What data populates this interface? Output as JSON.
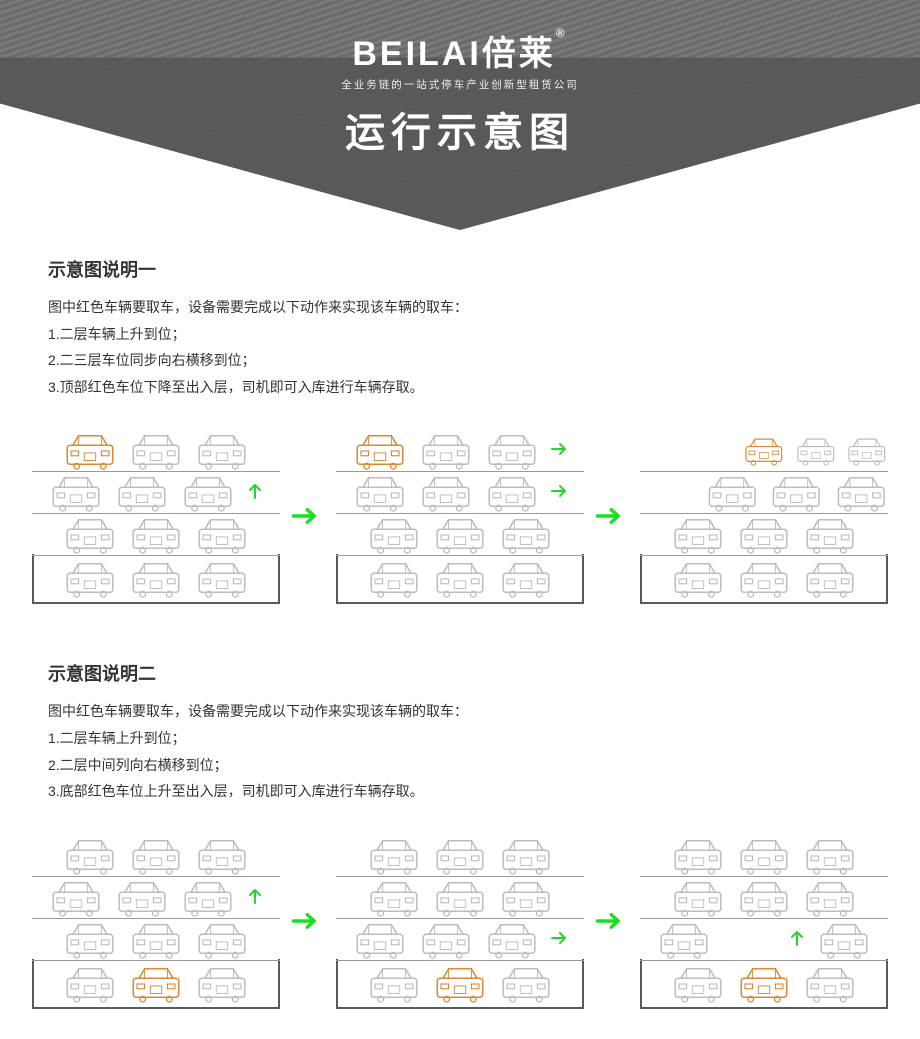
{
  "brand": "BEILAI倍莱",
  "reg": "®",
  "tagline": "全业务链的一站式停车产业创新型租赁公司",
  "title": "运行示意图",
  "colors": {
    "car_grey": "#bdbdbd",
    "car_highlight": "#d68a3a",
    "arrow_green": "#19e01e",
    "pit_border": "#5a5a5a",
    "shelf": "#9a9a9a",
    "banner_dark": "#555555",
    "banner_stripe_a": "#6a6a6a",
    "banner_stripe_b": "#7a7a7a",
    "text": "#333333",
    "bg": "#ffffff"
  },
  "section1": {
    "heading": "示意图说明一",
    "intro": "图中红色车辆要取车，设备需要完成以下动作来实现该车辆的取车：",
    "step1": "1.二层车辆上升到位；",
    "step2": "2.二三层车位同步向右横移到位；",
    "step3": "3.顶部红色车位下降至出入层，司机即可入库进行车辆存取。",
    "stages": [
      {
        "levels": [
          {
            "cars": [
              "hi",
              "g",
              "g"
            ],
            "shelf": true
          },
          {
            "cars": [
              "g",
              "g",
              "g"
            ],
            "shelf": true,
            "move": {
              "type": "up",
              "after": 2
            }
          },
          {
            "cars": [
              "g",
              "g",
              "g"
            ],
            "shelf": true
          },
          {
            "cars": [
              "g",
              "g",
              "g"
            ],
            "pit": true
          }
        ]
      },
      {
        "levels": [
          {
            "cars": [
              "hi",
              "g",
              "g"
            ],
            "shelf": true,
            "move": {
              "type": "right",
              "after": 2
            }
          },
          {
            "cars": [
              "g",
              "g",
              "g"
            ],
            "shelf": true,
            "move": {
              "type": "right",
              "after": 2
            }
          },
          {
            "cars": [
              "g",
              "g",
              "g"
            ],
            "shelf": true
          },
          {
            "cars": [
              "g",
              "g",
              "g"
            ],
            "pit": true
          }
        ]
      },
      {
        "levels": [
          {
            "cars": [
              "",
              "",
              "hi",
              "g",
              "g"
            ],
            "shelf": true,
            "compact": true
          },
          {
            "cars": [
              "",
              "g",
              "g",
              "g"
            ],
            "shelf": true,
            "compact": true
          },
          {
            "cars": [
              "g",
              "g",
              "g"
            ],
            "shelf": true
          },
          {
            "cars": [
              "g",
              "g",
              "g"
            ],
            "pit": true
          }
        ]
      }
    ]
  },
  "section2": {
    "heading": "示意图说明二",
    "intro": "图中红色车辆要取车，设备需要完成以下动作来实现该车辆的取车：",
    "step1": "1.二层车辆上升到位；",
    "step2": "2.二层中间列向右横移到位；",
    "step3": "3.底部红色车位上升至出入层，司机即可入库进行车辆存取。",
    "stages": [
      {
        "levels": [
          {
            "cars": [
              "g",
              "g",
              "g"
            ],
            "shelf": true
          },
          {
            "cars": [
              "g",
              "g",
              "g"
            ],
            "shelf": true,
            "move": {
              "type": "up",
              "after": 2
            }
          },
          {
            "cars": [
              "g",
              "g",
              "g"
            ],
            "shelf": true
          },
          {
            "cars": [
              "g",
              "hi",
              "g"
            ],
            "pit": true
          }
        ]
      },
      {
        "levels": [
          {
            "cars": [
              "g",
              "g",
              "g"
            ],
            "shelf": true
          },
          {
            "cars": [
              "g",
              "g",
              "g"
            ],
            "shelf": true
          },
          {
            "cars": [
              "g",
              "g",
              "g"
            ],
            "shelf": true,
            "move": {
              "type": "right",
              "after": 2
            }
          },
          {
            "cars": [
              "g",
              "hi",
              "g"
            ],
            "pit": true
          }
        ]
      },
      {
        "levels": [
          {
            "cars": [
              "g",
              "g",
              "g"
            ],
            "shelf": true
          },
          {
            "cars": [
              "g",
              "g",
              "g"
            ],
            "shelf": true
          },
          {
            "cars": [
              "g",
              "",
              "g"
            ],
            "shelf": true,
            "move": {
              "type": "up",
              "after": 1
            }
          },
          {
            "cars": [
              "g",
              "hi",
              "g"
            ],
            "pit": true
          }
        ]
      }
    ]
  }
}
